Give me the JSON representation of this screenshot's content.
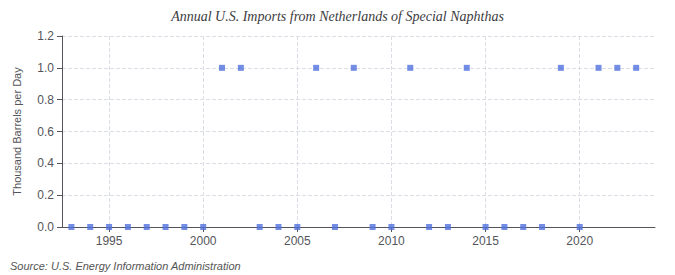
{
  "chart_data": {
    "type": "scatter",
    "title": "Annual U.S. Imports from Netherlands of Special Naphthas",
    "ylabel": "Thousand Barrels per Day",
    "annotations": [
      "Source: U.S. Energy Information Administration"
    ],
    "x": [
      1993,
      1994,
      1995,
      1996,
      1997,
      1998,
      1999,
      2000,
      2001,
      2002,
      2003,
      2004,
      2005,
      2006,
      2007,
      2008,
      2009,
      2010,
      2011,
      2012,
      2013,
      2014,
      2015,
      2016,
      2017,
      2018,
      2019,
      2020,
      2021,
      2022,
      2023
    ],
    "values": [
      0.0,
      0.0,
      0.0,
      0.0,
      0.0,
      0.0,
      0.0,
      0.0,
      1.0,
      1.0,
      0.0,
      0.0,
      0.0,
      1.0,
      0.0,
      1.0,
      0.0,
      0.0,
      1.0,
      0.0,
      0.0,
      1.0,
      0.0,
      0.0,
      0.0,
      0.0,
      1.0,
      0.0,
      1.0,
      1.0,
      1.0
    ],
    "marker": "square",
    "xlim": [
      1992.5,
      2024
    ],
    "ylim": [
      0,
      1.2
    ],
    "xticks": [
      1995,
      2000,
      2005,
      2010,
      2015,
      2020
    ],
    "yticks": [
      {
        "value": 0.0,
        "label": "0.0"
      },
      {
        "value": 0.2,
        "label": "0.2"
      },
      {
        "value": 0.4,
        "label": "0.4"
      },
      {
        "value": 0.6,
        "label": "0.6"
      },
      {
        "value": 0.8,
        "label": "0.8"
      },
      {
        "value": 1.0,
        "label": "1.0"
      },
      {
        "value": 1.2,
        "label": "1.2"
      }
    ],
    "grid": true
  }
}
